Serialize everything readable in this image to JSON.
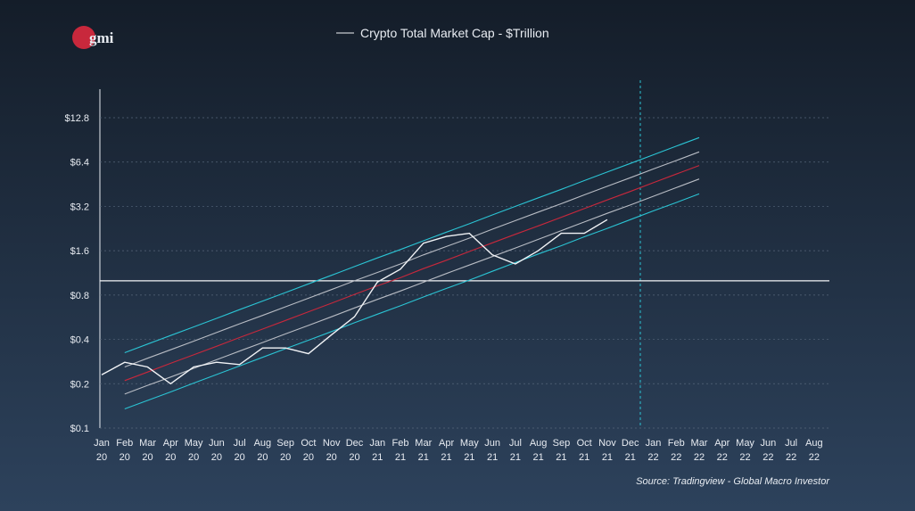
{
  "chart_data": {
    "type": "line",
    "logo": "gmi",
    "title": "Crypto Total Market Cap - $Trillion",
    "source": "Source: Tradingview - Global Macro Investor",
    "log_scale": true,
    "grid": true,
    "categories": [
      [
        "Jan",
        "20"
      ],
      [
        "Feb",
        "20"
      ],
      [
        "Mar",
        "20"
      ],
      [
        "Apr",
        "20"
      ],
      [
        "May",
        "20"
      ],
      [
        "Jun",
        "20"
      ],
      [
        "Jul",
        "20"
      ],
      [
        "Aug",
        "20"
      ],
      [
        "Sep",
        "20"
      ],
      [
        "Oct",
        "20"
      ],
      [
        "Nov",
        "20"
      ],
      [
        "Dec",
        "20"
      ],
      [
        "Jan",
        "21"
      ],
      [
        "Feb",
        "21"
      ],
      [
        "Mar",
        "21"
      ],
      [
        "Apr",
        "21"
      ],
      [
        "May",
        "21"
      ],
      [
        "Jun",
        "21"
      ],
      [
        "Jul",
        "21"
      ],
      [
        "Aug",
        "21"
      ],
      [
        "Sep",
        "21"
      ],
      [
        "Oct",
        "21"
      ],
      [
        "Nov",
        "21"
      ],
      [
        "Dec",
        "21"
      ],
      [
        "Jan",
        "22"
      ],
      [
        "Feb",
        "22"
      ],
      [
        "Mar",
        "22"
      ],
      [
        "Apr",
        "22"
      ],
      [
        "May",
        "22"
      ],
      [
        "Jun",
        "22"
      ],
      [
        "Jul",
        "22"
      ],
      [
        "Aug",
        "22"
      ]
    ],
    "ylim": [
      0.1,
      20
    ],
    "yticks": [
      {
        "value": 0.1,
        "label": "$0.1"
      },
      {
        "value": 0.2,
        "label": "$0.2"
      },
      {
        "value": 0.4,
        "label": "$0.4"
      },
      {
        "value": 0.8,
        "label": "$0.8"
      },
      {
        "value": 1.6,
        "label": "$1.6"
      },
      {
        "value": 3.2,
        "label": "$3.2"
      },
      {
        "value": 6.4,
        "label": "$6.4"
      },
      {
        "value": 12.8,
        "label": "$12.8"
      }
    ],
    "hline": 1.0,
    "series": [
      {
        "name": "Crypto Total Market Cap - $Trillion",
        "color": "#f2f4f7",
        "values": [
          0.23,
          0.28,
          0.26,
          0.2,
          0.26,
          0.28,
          0.27,
          0.35,
          0.35,
          0.32,
          0.43,
          0.57,
          0.98,
          1.2,
          1.8,
          2.0,
          2.1,
          1.5,
          1.3,
          1.6,
          2.1,
          2.1,
          2.6,
          null,
          null,
          null,
          null,
          null,
          null,
          null,
          null,
          null
        ]
      },
      {
        "color": "#2bc4d4",
        "values": [
          null,
          0.325,
          0.372,
          0.425,
          0.486,
          0.556,
          0.637,
          0.728,
          0.833,
          0.953,
          1.09,
          1.25,
          1.43,
          1.63,
          1.87,
          2.14,
          2.44,
          2.8,
          3.2,
          3.66,
          4.18,
          4.79,
          5.48,
          6.26,
          7.17,
          8.2,
          9.38,
          null,
          null,
          null,
          null,
          null
        ]
      },
      {
        "color": "#b8bcc4",
        "values": [
          null,
          0.26,
          0.298,
          0.34,
          0.389,
          0.445,
          0.51,
          0.582,
          0.666,
          0.762,
          0.872,
          1.0,
          1.14,
          1.3,
          1.5,
          1.71,
          1.95,
          2.24,
          2.56,
          2.93,
          3.34,
          3.83,
          4.38,
          5.01,
          5.74,
          6.56,
          7.5,
          null,
          null,
          null,
          null,
          null
        ]
      },
      {
        "color": "#c8283c",
        "values": [
          null,
          0.21,
          0.24,
          0.275,
          0.314,
          0.359,
          0.412,
          0.47,
          0.538,
          0.616,
          0.704,
          0.808,
          0.924,
          1.05,
          1.21,
          1.38,
          1.58,
          1.81,
          2.07,
          2.36,
          2.7,
          3.09,
          3.54,
          4.04,
          4.63,
          5.3,
          6.06,
          null,
          null,
          null,
          null,
          null
        ]
      },
      {
        "color": "#b8bcc4",
        "values": [
          null,
          0.17,
          0.195,
          0.222,
          0.254,
          0.291,
          0.333,
          0.381,
          0.436,
          0.498,
          0.57,
          0.654,
          0.748,
          0.852,
          0.978,
          1.12,
          1.28,
          1.46,
          1.67,
          1.91,
          2.19,
          2.51,
          2.87,
          3.27,
          3.75,
          4.29,
          4.91,
          null,
          null,
          null,
          null,
          null
        ]
      },
      {
        "color": "#2bc4d4",
        "values": [
          null,
          0.135,
          0.154,
          0.176,
          0.202,
          0.231,
          0.264,
          0.302,
          0.346,
          0.395,
          0.452,
          0.519,
          0.593,
          0.676,
          0.776,
          0.888,
          1.01,
          1.16,
          1.33,
          1.52,
          1.73,
          1.99,
          2.27,
          2.6,
          2.98,
          3.4,
          3.89,
          null,
          null,
          null,
          null,
          null
        ]
      }
    ]
  }
}
